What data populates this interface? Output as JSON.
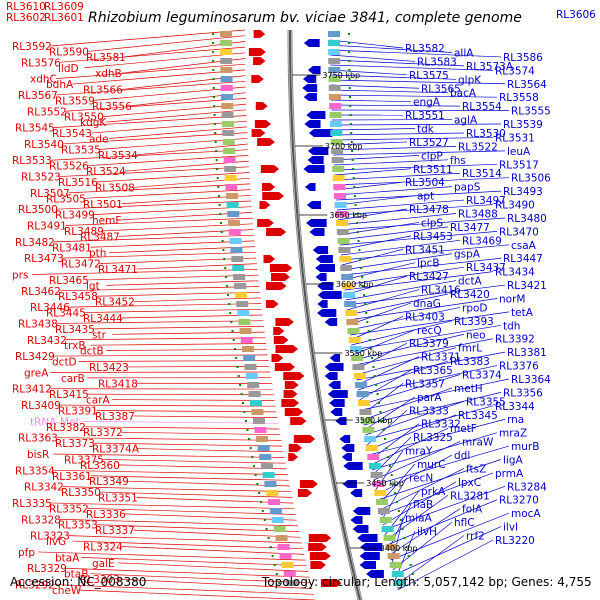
{
  "header": {
    "title": "Rhizobium leguminosarum bv. viciae 3841, complete genome",
    "top_left_labels": [
      "RL3610",
      "RL3609",
      "RL3602",
      "RL3601"
    ],
    "top_right_label": "RL3606"
  },
  "footer": {
    "accession": "Accession: NC_008380",
    "summary": "Topology: circular; Length: 5,057,142 bp; Genes: 4,755"
  },
  "colors": {
    "forward_strand": "#dd0000",
    "reverse_strand": "#0000cc",
    "trna": "#ee88ee",
    "kbp_tick": "#008800",
    "backbone": "#888888"
  },
  "kbp_marks": [
    "3750 kbp",
    "3700 kbp",
    "3650 kbp",
    "3600 kbp",
    "3550 kbp",
    "3500 kbp",
    "3450 kbp",
    "3400 kbp"
  ],
  "left_labels": [
    "RL3592",
    "RL3590",
    "RL3581",
    "RL3576",
    "lldD",
    "xdhB",
    "xdhC",
    "bdhA",
    "RL3566",
    "RL3567",
    "RL3559",
    "RL3556",
    "RL3552",
    "RL3550",
    "kdgK",
    "RL3545",
    "RL3543",
    "ade",
    "RL3540",
    "RL3535",
    "RL3534",
    "RL3533",
    "RL3526",
    "RL3524",
    "RL3523",
    "RL3516",
    "RL3508",
    "RL3507",
    "RL3505",
    "RL3501",
    "RL3500",
    "RL3499",
    "hemF",
    "RL3491",
    "RL3489",
    "RL3487",
    "RL3482",
    "RL3481",
    "pth",
    "RL3473",
    "RL3472",
    "RL3471",
    "prs",
    "RL3465",
    "lgt",
    "RL3462",
    "RL3458",
    "RL3452",
    "RL3446",
    "RL3445",
    "RL3444",
    "RL3438",
    "RL3435",
    "str",
    "RL3432",
    "trxB",
    "dctB",
    "RL3429",
    "dctD",
    "RL3423",
    "greA",
    "carB",
    "RL3418",
    "RL3412",
    "RL3415",
    "carA",
    "RL3409",
    "RL3391",
    "RL3387",
    "tRNA-Met",
    "RL3382",
    "RL3372",
    "RL3363",
    "RL3373",
    "RL3374A",
    "bisR",
    "RL3375",
    "RL3360",
    "RL3354",
    "RL3361",
    "RL3349",
    "RL3342",
    "RL3350",
    "RL3351",
    "RL3335",
    "RL3352",
    "RL3336",
    "RL3328",
    "RL3353",
    "RL3337",
    "RL3323",
    "ilvG",
    "RL3324",
    "pfp",
    "btaA",
    "galE",
    "RL3329",
    "btaB",
    "RL3303",
    "RL3292",
    "cheW"
  ],
  "right_labels": [
    "RL3582",
    "allA",
    "RL3586",
    "RL3583",
    "RL3573A",
    "RL3574",
    "RL3575",
    "glpK",
    "RL3564",
    "RL3565",
    "bacA",
    "RL3558",
    "engA",
    "RL3554",
    "RL3555",
    "RL3551",
    "aglA",
    "RL3539",
    "tdk",
    "RL3530",
    "RL3531",
    "RL3527",
    "RL3522",
    "leuA",
    "clpP",
    "fhs",
    "RL3517",
    "RL3511",
    "RL3514",
    "RL3506",
    "RL3504",
    "papS",
    "RL3493",
    "apt",
    "RL3497",
    "RL3490",
    "RL3478",
    "RL3488",
    "RL3480",
    "clpS",
    "RL3477",
    "RL3470",
    "RL3453",
    "RL3469",
    "csaA",
    "RL3451",
    "gspA",
    "RL3447",
    "lpcB",
    "RL3437",
    "RL3434",
    "RL3427",
    "dctA",
    "RL3421",
    "RL3416",
    "RL3420",
    "norM",
    "dnaG",
    "rpoD",
    "tetA",
    "RL3403",
    "RL3393",
    "tdh",
    "recQ",
    "neo",
    "RL3392",
    "RL3379",
    "fmrL",
    "RL3381",
    "RL3371",
    "RL3383",
    "RL3376",
    "RL3365",
    "RL3374",
    "RL3364",
    "RL3357",
    "metH",
    "RL3356",
    "parA",
    "RL3355",
    "RL3344",
    "RL3333",
    "RL3345",
    "rna",
    "RL3332",
    "metF",
    "mraZ",
    "RL3325",
    "mraW",
    "murB",
    "mraY",
    "ddl",
    "ligA",
    "murC",
    "ftsZ",
    "prmA",
    "recN",
    "lpxC",
    "RL3284",
    "prkA",
    "RL3281",
    "RL3270",
    "flaB",
    "folA",
    "mocA",
    "miaA",
    "hflC",
    "ilvI",
    "ilvH",
    "rrf2",
    "RL3220"
  ]
}
